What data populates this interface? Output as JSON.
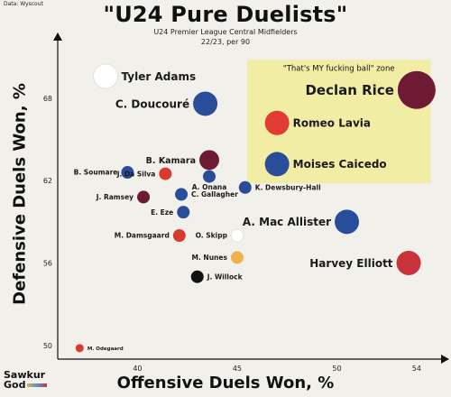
{
  "source": "Data: Wyscout",
  "logo": {
    "line1": "Sawkur",
    "line2": "God"
  },
  "chart_data": {
    "type": "scatter",
    "title": "\"U24 Pure Duelists\"",
    "subtitle_line1": "U24 Premier League Central Midfielders",
    "subtitle_line2": "22/23, per 90",
    "xlabel": "Offensive Duels Won, %",
    "ylabel": "Defensive Duels Won, %",
    "xlim": [
      36,
      55
    ],
    "ylim": [
      49,
      72
    ],
    "xticks": [
      40,
      45,
      50,
      54
    ],
    "yticks": [
      50,
      56,
      62,
      68
    ],
    "zone_label": "\"That's MY fucking ball\" zone",
    "zone": {
      "x": [
        45.5,
        54.7
      ],
      "y": [
        61.8,
        70.8
      ]
    },
    "zone_color": "#f2ec9c",
    "points": [
      {
        "name": "Tyler Adams",
        "x": 38.4,
        "y": 69.6,
        "color": "#ffffff",
        "size": "large",
        "label_side": "right",
        "label_size": "large"
      },
      {
        "name": "C. Doucouré",
        "x": 43.4,
        "y": 67.6,
        "color": "#2a4d9a",
        "size": "large",
        "label_side": "left",
        "label_size": "large"
      },
      {
        "name": "Declan Rice",
        "x": 54.0,
        "y": 68.6,
        "color": "#6e1a35",
        "size": "xlarge",
        "label_side": "left",
        "label_size": "xlarge"
      },
      {
        "name": "Romeo Lavia",
        "x": 47.0,
        "y": 66.2,
        "color": "#e03c31",
        "size": "large",
        "label_side": "right",
        "label_size": "large"
      },
      {
        "name": "Moises Caicedo",
        "x": 47.0,
        "y": 63.2,
        "color": "#2a4d9a",
        "size": "large",
        "label_side": "right",
        "label_size": "large"
      },
      {
        "name": "B. Kamara",
        "x": 43.6,
        "y": 63.5,
        "color": "#6e1a35",
        "size": "medium",
        "label_side": "left",
        "label_size": "medium"
      },
      {
        "name": "B. Soumare",
        "x": 39.5,
        "y": 62.6,
        "color": "#2a4d9a",
        "size": "small",
        "label_side": "left",
        "label_size": "small"
      },
      {
        "name": "J. Da Silva",
        "x": 41.4,
        "y": 62.5,
        "color": "#d93a2f",
        "size": "small",
        "label_side": "left",
        "label_size": "small"
      },
      {
        "name": "A. Onana",
        "x": 43.6,
        "y": 62.3,
        "color": "#2a4d9a",
        "size": "small",
        "label_side": "below",
        "label_size": "small"
      },
      {
        "name": "K. Dewsbury-Hall",
        "x": 45.4,
        "y": 61.5,
        "color": "#2a4d9a",
        "size": "small",
        "label_side": "right",
        "label_size": "small"
      },
      {
        "name": "C. Gallagher",
        "x": 42.2,
        "y": 61.0,
        "color": "#2a4d9a",
        "size": "small",
        "label_side": "right",
        "label_size": "small"
      },
      {
        "name": "J. Ramsey",
        "x": 40.3,
        "y": 60.8,
        "color": "#6e1a35",
        "size": "small",
        "label_side": "left",
        "label_size": "small"
      },
      {
        "name": "E. Eze",
        "x": 42.3,
        "y": 59.7,
        "color": "#2a4d9a",
        "size": "small",
        "label_side": "left",
        "label_size": "small"
      },
      {
        "name": "A. Mac Allister",
        "x": 50.5,
        "y": 59.0,
        "color": "#2a4d9a",
        "size": "large",
        "label_side": "left",
        "label_size": "large"
      },
      {
        "name": "M. Damsgaard",
        "x": 42.1,
        "y": 58.0,
        "color": "#d93a2f",
        "size": "small",
        "label_side": "left",
        "label_size": "small"
      },
      {
        "name": "O. Skipp",
        "x": 45.0,
        "y": 58.0,
        "color": "#ffffff",
        "size": "small",
        "label_side": "left",
        "label_size": "small"
      },
      {
        "name": "M. Nunes",
        "x": 45.0,
        "y": 56.4,
        "color": "#f0b050",
        "size": "small",
        "label_side": "left",
        "label_size": "small"
      },
      {
        "name": "Harvey Elliott",
        "x": 53.6,
        "y": 56.0,
        "color": "#c8323a",
        "size": "large",
        "label_side": "left",
        "label_size": "large"
      },
      {
        "name": "J. Willock",
        "x": 43.0,
        "y": 55.0,
        "color": "#111111",
        "size": "small",
        "label_side": "right",
        "label_size": "small"
      },
      {
        "name": "M. Odegaard",
        "x": 37.1,
        "y": 49.8,
        "color": "#d93a2f",
        "size": "tiny",
        "label_side": "right",
        "label_size": "tiny"
      }
    ]
  }
}
